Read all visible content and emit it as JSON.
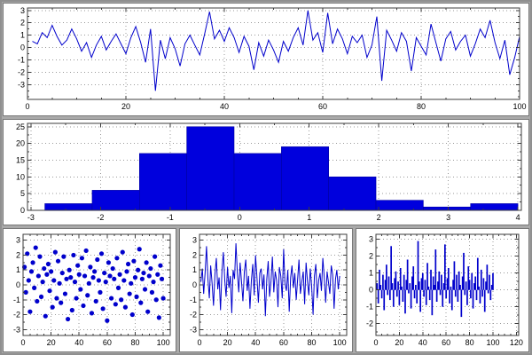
{
  "window": {
    "background": "#ffffff",
    "separator_color": "#a9a9a9",
    "accent_color": "#0000cc"
  },
  "chart_data": [
    {
      "id": "timeseries",
      "type": "line",
      "title": "",
      "xlabel": "",
      "ylabel": "",
      "color": "#0000cc",
      "grid": true,
      "x_ticks": [
        0,
        20,
        40,
        60,
        80,
        100
      ],
      "y_ticks": [
        3,
        2,
        1,
        0,
        -1,
        -2,
        -3
      ],
      "x_minor": 5,
      "y_minor": 0.5,
      "xlim": [
        0,
        100
      ],
      "ylim": [
        -4.2,
        3.2
      ],
      "x0": 1,
      "dx": 1,
      "y": [
        0.5,
        0.3,
        1.2,
        0.8,
        1.8,
        0.9,
        0.2,
        0.6,
        1.5,
        0.7,
        -0.3,
        0.4,
        -0.8,
        0.2,
        0.9,
        -0.2,
        0.5,
        1.1,
        0.3,
        -0.5,
        0.8,
        1.7,
        0.4,
        -1.2,
        1.5,
        -3.5,
        0.6,
        -0.9,
        0.8,
        -0.1,
        -1.5,
        0.3,
        1.0,
        0.2,
        -0.6,
        1.1,
        2.9,
        0.7,
        1.4,
        0.5,
        1.6,
        0.8,
        -0.4,
        0.9,
        0.1,
        -1.8,
        0.4,
        -0.7,
        0.6,
        -0.2,
        -1.2,
        0.5,
        -0.3,
        0.8,
        1.6,
        0.2,
        3.0,
        0.6,
        1.2,
        -0.4,
        2.8,
        0.3,
        1.5,
        0.7,
        -0.5,
        0.9,
        0.4,
        1.0,
        -0.8,
        0.2,
        2.5,
        -2.7,
        1.4,
        0.6,
        -0.3,
        1.2,
        0.5,
        -1.9,
        0.8,
        0.1,
        -0.6,
        1.9,
        0.4,
        -1.1,
        0.7,
        1.3,
        -0.2,
        0.5,
        1.0,
        -0.7,
        0.3,
        1.5,
        0.8,
        2.2,
        0.4,
        -0.9,
        0.6,
        -2.2,
        -0.8,
        0.9
      ]
    },
    {
      "id": "histogram",
      "type": "histogram",
      "title": "",
      "xlabel": "",
      "ylabel": "",
      "color": "#0000dd",
      "edge_color": "#0000a0",
      "grid": true,
      "x_ticks": [
        -3,
        -2,
        -1,
        0,
        1,
        2,
        3,
        4
      ],
      "y_ticks": [
        0,
        5,
        10,
        15,
        20,
        25
      ],
      "x_minor": 0.5,
      "y_minor": 2.5,
      "xlim": [
        -3.05,
        4.05
      ],
      "ylim": [
        0,
        26
      ],
      "bin_edges": [
        -2.8,
        -2.12,
        -1.44,
        -0.76,
        -0.08,
        0.6,
        1.28,
        1.96,
        2.64,
        3.32,
        4.0
      ],
      "counts": [
        2,
        6,
        17,
        25,
        17,
        19,
        10,
        3,
        1,
        2
      ]
    },
    {
      "id": "scatter",
      "type": "scatter",
      "title": "",
      "xlabel": "",
      "ylabel": "",
      "color": "#0000cc",
      "grid": true,
      "x_ticks": [
        0,
        20,
        40,
        60,
        80,
        100
      ],
      "y_ticks": [
        3,
        2,
        1,
        0,
        -1,
        -2,
        -3
      ],
      "x_minor": 5,
      "y_minor": 0.5,
      "xlim": [
        0,
        105
      ],
      "ylim": [
        -3.4,
        3.4
      ],
      "x0": 1,
      "dx": 1,
      "y": [
        1.2,
        -0.5,
        2.1,
        0.3,
        -1.8,
        0.9,
        1.5,
        -0.2,
        2.5,
        -1.1,
        0.6,
        1.9,
        -0.8,
        0.2,
        1.1,
        -2.1,
        0.7,
        1.4,
        -0.4,
        0.9,
        -1.5,
        0.3,
        2.2,
        -0.9,
        1.6,
        0.1,
        -1.2,
        0.8,
        1.9,
        -0.6,
        0.4,
        -2.3,
        1.0,
        0.5,
        -1.7,
        2.0,
        0.2,
        -0.9,
        1.3,
        0.7,
        -0.3,
        1.8,
        -1.4,
        0.6,
        2.3,
        -0.7,
        0.1,
        1.2,
        -1.9,
        0.5,
        0.9,
        -1.1,
        1.7,
        0.3,
        -0.5,
        2.1,
        -1.6,
        0.8,
        0.2,
        -2.4,
        1.5,
        0.6,
        -0.9,
        1.1,
        0.4,
        -1.3,
        1.8,
        -0.2,
        0.7,
        -1.0,
        2.2,
        0.3,
        -1.5,
        0.9,
        1.4,
        -0.6,
        0.1,
        -2.0,
        1.6,
        0.5,
        -0.8,
        1.0,
        2.4,
        -1.2,
        0.4,
        0.8,
        -0.3,
        1.5,
        -1.8,
        0.6,
        1.1,
        -0.5,
        0.2,
        1.9,
        -1.0,
        0.7,
        -2.2,
        1.3,
        0.4,
        -0.9
      ]
    },
    {
      "id": "noise-line",
      "type": "line",
      "title": "",
      "xlabel": "",
      "ylabel": "",
      "color": "#0000cc",
      "grid": true,
      "x_ticks": [
        0,
        20,
        40,
        60,
        80,
        100
      ],
      "y_ticks": [
        3,
        2,
        1,
        0,
        -1,
        -2,
        -3
      ],
      "x_minor": 5,
      "y_minor": 0.5,
      "xlim": [
        0,
        105
      ],
      "ylim": [
        -3.4,
        3.4
      ],
      "x0": 1,
      "dx": 1,
      "y": [
        0.2,
        1.1,
        -0.6,
        0.8,
        2.6,
        0.4,
        -0.9,
        1.3,
        0.1,
        -1.4,
        0.7,
        1.8,
        -0.3,
        0.5,
        -1.7,
        0.9,
        2.2,
        0.3,
        -0.8,
        1.2,
        -0.2,
        0.6,
        -1.9,
        1.0,
        0.4,
        2.8,
        0.8,
        -0.5,
        1.5,
        0.2,
        -1.1,
        0.9,
        1.7,
        -0.4,
        0.6,
        -1.6,
        0.3,
        1.4,
        -0.7,
        2.0,
        0.5,
        -1.2,
        0.8,
        1.1,
        -0.3,
        0.7,
        -2.1,
        0.4,
        1.6,
        -0.8,
        0.2,
        1.9,
        -0.5,
        0.9,
        0.3,
        -1.5,
        1.2,
        0.6,
        -0.9,
        2.4,
        0.1,
        -0.4,
        1.0,
        -1.8,
        0.5,
        1.3,
        -0.2,
        0.8,
        -1.0,
        0.4,
        1.7,
        -0.6,
        0.2,
        0.9,
        -1.3,
        1.5,
        0.3,
        -0.7,
        1.1,
        -0.1,
        -2.0,
        0.6,
        1.4,
        -0.9,
        0.3,
        0.8,
        -0.4,
        1.8,
        0.5,
        -1.2,
        0.9,
        0.2,
        -0.6,
        1.3,
        0.7,
        -1.6,
        0.4,
        1.0,
        -0.3,
        0.6
      ]
    },
    {
      "id": "impulse",
      "type": "stem",
      "title": "",
      "xlabel": "",
      "ylabel": "",
      "color": "#0000cc",
      "grid": true,
      "x_ticks": [
        0,
        20,
        40,
        60,
        80,
        100,
        120
      ],
      "y_ticks": [
        3,
        2,
        1,
        0,
        -1,
        -2
      ],
      "x_minor": 5,
      "y_minor": 0.5,
      "xlim": [
        0,
        122
      ],
      "ylim": [
        -2.7,
        3.3
      ],
      "x0": 1,
      "dx": 1,
      "y": [
        0.4,
        -0.8,
        1.2,
        0.3,
        -0.5,
        0.9,
        -1.2,
        0.6,
        1.5,
        -0.3,
        0.8,
        -0.6,
        2.6,
        0.4,
        -1.0,
        0.7,
        1.1,
        -0.4,
        0.5,
        -0.9,
        1.3,
        0.2,
        -0.7,
        0.9,
        -1.4,
        0.6,
        1.8,
        -0.2,
        0.4,
        -1.1,
        0.8,
        1.4,
        -0.5,
        0.3,
        -0.8,
        2.9,
        0.5,
        -1.3,
        0.7,
        1.0,
        -0.4,
        0.6,
        -0.9,
        1.6,
        0.2,
        -0.6,
        1.2,
        -1.5,
        0.8,
        0.3,
        2.4,
        -0.7,
        0.5,
        1.1,
        -0.3,
        0.9,
        -1.0,
        0.4,
        2.7,
        -0.5,
        0.7,
        1.3,
        -0.8,
        0.2,
        -1.2,
        0.6,
        1.7,
        -0.4,
        0.9,
        -0.7,
        1.1,
        0.3,
        -1.6,
        0.8,
        2.2,
        -0.3,
        0.5,
        -0.9,
        1.4,
        0.6,
        -0.5,
        1.0,
        -1.1,
        0.4,
        0.8,
        -0.6,
        1.9,
        0.2,
        -0.8,
        1.2,
        -0.4,
        0.7,
        -1.3,
        0.5,
        1.5,
        -0.2,
        0.9,
        -0.6,
        0.3,
        1.0
      ]
    }
  ]
}
